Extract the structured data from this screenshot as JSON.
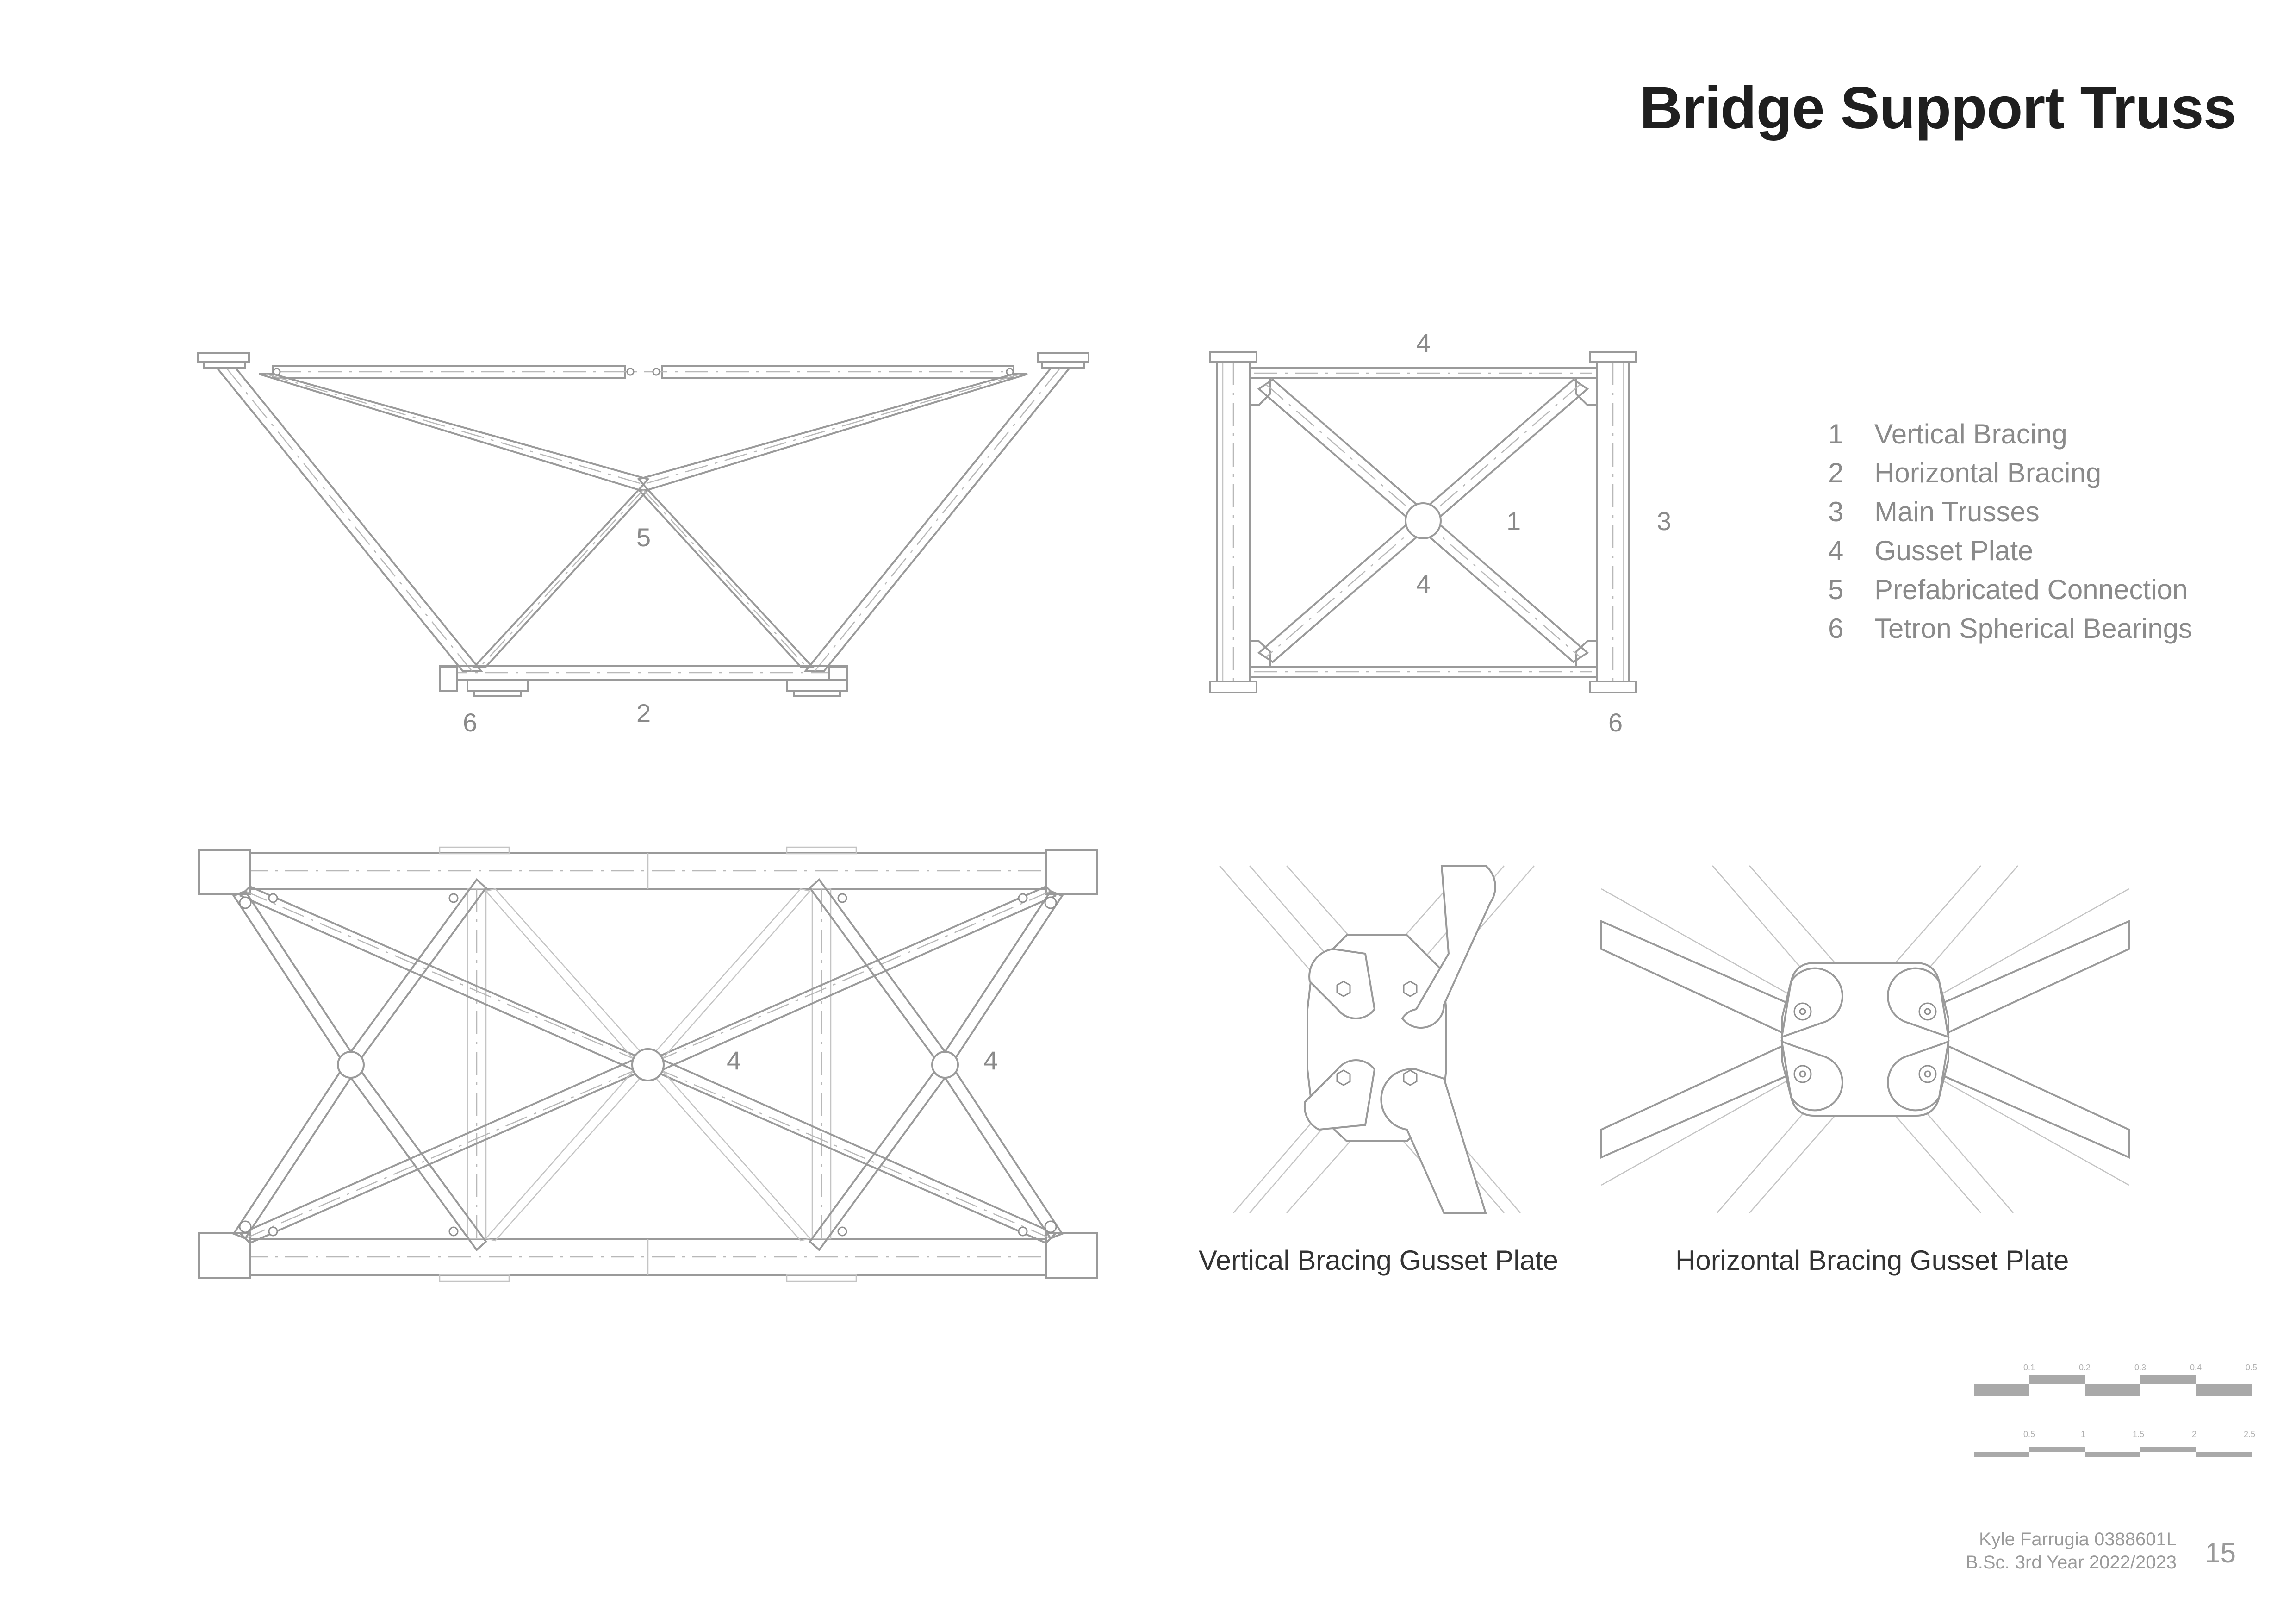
{
  "title": "Bridge Support Truss",
  "callouts": {
    "front_view": {
      "prefab_connection": "5",
      "horizontal_bracing": "2",
      "bearings": "6"
    },
    "side_view": {
      "gusset_top": "4",
      "vertical_bracing": "1",
      "main_trusses": "3",
      "gusset_center": "4",
      "bearings": "6"
    },
    "plan_view": {
      "gusset_center": "4",
      "gusset_right": "4"
    }
  },
  "legend": [
    {
      "number": "1",
      "label": "Vertical Bracing"
    },
    {
      "number": "2",
      "label": "Horizontal Bracing"
    },
    {
      "number": "3",
      "label": "Main Trusses"
    },
    {
      "number": "4",
      "label": "Gusset Plate"
    },
    {
      "number": "5",
      "label": "Prefabricated Connection"
    },
    {
      "number": "6",
      "label": "Tetron Spherical Bearings"
    }
  ],
  "captions": {
    "vertical_detail": "Vertical Bracing Gusset Plate",
    "horizontal_detail": "Horizontal Bracing Gusset Plate"
  },
  "scale_bars": {
    "upper": [
      "0.1",
      "0.2",
      "0.3",
      "0.4",
      "0.5"
    ],
    "lower": [
      "0.5",
      "1",
      "1.5",
      "2",
      "2.5"
    ]
  },
  "footer": {
    "author": "Kyle Farrugia 0388601L",
    "course": "B.Sc. 3rd Year 2022/2023",
    "page_number": "15"
  },
  "colors": {
    "line": "#9a9a9a",
    "light_line": "#c4c4c4",
    "scale_fill": "#a9a9a9",
    "text": "#8a8a8a",
    "title": "#1f1f1f"
  }
}
